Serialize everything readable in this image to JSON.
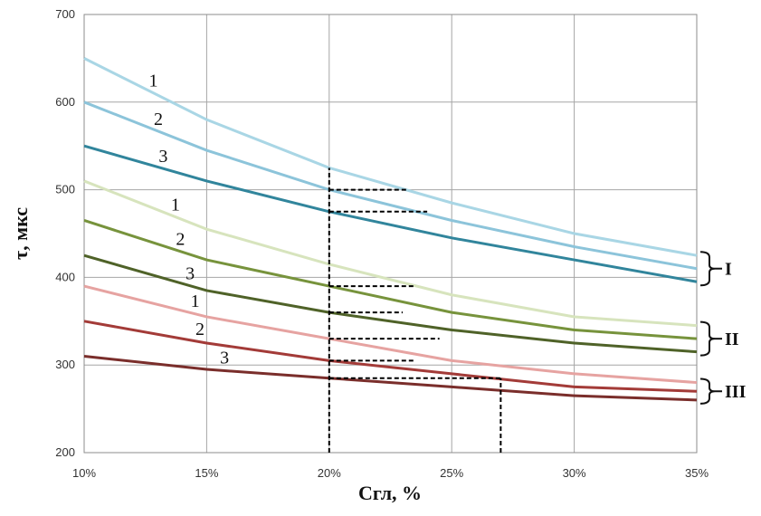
{
  "chart_data": {
    "type": "line",
    "xlabel": "Сгл, %",
    "ylabel": "τ, мкс",
    "x": [
      10,
      15,
      20,
      25,
      30,
      35
    ],
    "xlim": [
      10,
      35
    ],
    "xticks": [
      {
        "value": 10,
        "label": "10%"
      },
      {
        "value": 15,
        "label": "15%"
      },
      {
        "value": 20,
        "label": "20%"
      },
      {
        "value": 25,
        "label": "25%"
      },
      {
        "value": 30,
        "label": "30%"
      },
      {
        "value": 35,
        "label": "35%"
      }
    ],
    "ylim": [
      200,
      700
    ],
    "yticks": [
      200,
      300,
      400,
      500,
      600,
      700
    ],
    "grid": true,
    "series": [
      {
        "name": "1",
        "color": "#a9d6e5",
        "values": [
          650,
          580,
          525,
          485,
          450,
          425
        ]
      },
      {
        "name": "2",
        "color": "#8cc4da",
        "values": [
          600,
          545,
          500,
          465,
          435,
          410
        ]
      },
      {
        "name": "3",
        "color": "#31859c",
        "values": [
          550,
          510,
          475,
          445,
          420,
          395
        ]
      },
      {
        "name": "1",
        "color": "#d7e4bd",
        "values": [
          510,
          455,
          415,
          380,
          355,
          345
        ]
      },
      {
        "name": "2",
        "color": "#77933c",
        "values": [
          465,
          420,
          390,
          360,
          340,
          330
        ]
      },
      {
        "name": "3",
        "color": "#4f6228",
        "values": [
          425,
          385,
          360,
          340,
          325,
          315
        ]
      },
      {
        "name": "1",
        "color": "#e6a3a1",
        "values": [
          390,
          355,
          330,
          305,
          290,
          280
        ]
      },
      {
        "name": "2",
        "color": "#a33b38",
        "values": [
          350,
          325,
          305,
          290,
          275,
          270
        ]
      },
      {
        "name": "3",
        "color": "#7a2e2b",
        "values": [
          310,
          295,
          285,
          275,
          265,
          260
        ]
      }
    ],
    "group_labels": [
      "I",
      "II",
      "III"
    ],
    "reference_lines": [
      {
        "x": [
          20,
          20
        ],
        "y": [
          200,
          525
        ]
      },
      {
        "x": [
          20,
          23.2
        ],
        "y": [
          500,
          500
        ]
      },
      {
        "x": [
          20,
          24
        ],
        "y": [
          475,
          475
        ]
      },
      {
        "x": [
          20,
          23.5
        ],
        "y": [
          390,
          390
        ]
      },
      {
        "x": [
          20,
          23
        ],
        "y": [
          360,
          360
        ]
      },
      {
        "x": [
          20,
          24.5
        ],
        "y": [
          330,
          330
        ]
      },
      {
        "x": [
          20,
          23.5
        ],
        "y": [
          305,
          305
        ]
      },
      {
        "x": [
          20,
          27
        ],
        "y": [
          285,
          285
        ]
      },
      {
        "x": [
          27,
          27
        ],
        "y": [
          200,
          285
        ]
      }
    ]
  }
}
